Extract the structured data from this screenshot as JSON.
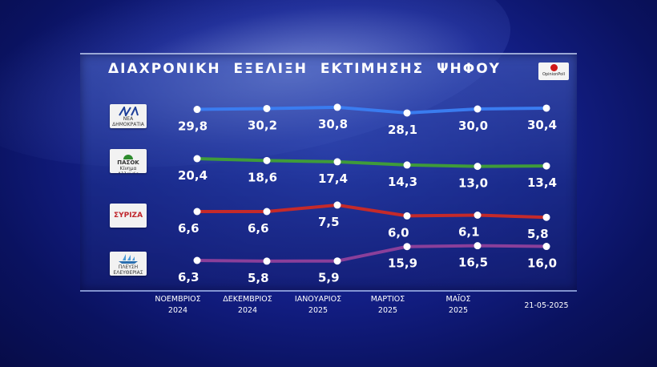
{
  "title": "ΔΙΑΧΡΟΝΙΚΗ ΕΞΕΛΙΞΗ ΕΚΤΙΜΗΣΗΣ ΨΗΦΟΥ",
  "pollster": "OpinionPoll",
  "logos": {
    "nd": {
      "sub": "ΝΕΑ ΔΗΜΟΚΡΑΤΙΑ"
    },
    "pasok": {
      "name": "ΠΑΣΟΚ",
      "sub": "Κίνημα Αλλαγής"
    },
    "syriza": {
      "name": "ΣΥΡΙΖΑ"
    },
    "plefsi": {
      "sub": "ΠΛΕΥΣΗ ΕΛΕΥΘΕΡΙΑΣ"
    }
  },
  "chart_data": {
    "type": "line",
    "title": "ΔΙΑΧΡΟΝΙΚΗ ΕΞΕΛΙΞΗ ΕΚΤΙΜΗΣΗΣ ΨΗΦΟΥ",
    "categories": [
      [
        "ΝΟΕΜΒΡΙΟΣ",
        "2024"
      ],
      [
        "ΔΕΚΕΜΒΡΙΟΣ",
        "2024"
      ],
      [
        "ΙΑΝΟΥΑΡΙΟΣ",
        "2025"
      ],
      [
        "ΜΑΡΤΙΟΣ",
        "2025"
      ],
      [
        "ΜΑΪΟΣ",
        "2025"
      ],
      [
        "21-05-2025"
      ]
    ],
    "series": [
      {
        "name": "ΝΔ",
        "color": "#3a7cf0",
        "values": [
          29.8,
          30.2,
          30.8,
          28.1,
          30.0,
          30.4
        ],
        "labels": [
          "29,8",
          "30,2",
          "30,8",
          "28,1",
          "30,0",
          "30,4"
        ]
      },
      {
        "name": "ΠΑΣΟΚ",
        "color": "#3f9b3a",
        "values": [
          20.4,
          18.6,
          17.4,
          14.3,
          13.0,
          13.4
        ],
        "labels": [
          "20,4",
          "18,6",
          "17,4",
          "14,3",
          "13,0",
          "13,4"
        ]
      },
      {
        "name": "ΣΥΡΙΖΑ",
        "color": "#c52a2a",
        "values": [
          6.6,
          6.6,
          7.5,
          6.0,
          6.1,
          5.8
        ],
        "labels": [
          "6,6",
          "6,6",
          "7,5",
          "6,0",
          "6,1",
          "5,8"
        ]
      },
      {
        "name": "ΠΛΕΥΣΗ ΕΛΕΥΘΕΡΙΑΣ",
        "color": "#8a3f9a",
        "values": [
          6.3,
          5.8,
          5.9,
          15.9,
          16.5,
          16.0
        ],
        "labels": [
          "6,3",
          "5,8",
          "5,9",
          "15,9",
          "16,5",
          "16,0"
        ]
      }
    ],
    "grid": false,
    "legend": "left (party logos)"
  }
}
